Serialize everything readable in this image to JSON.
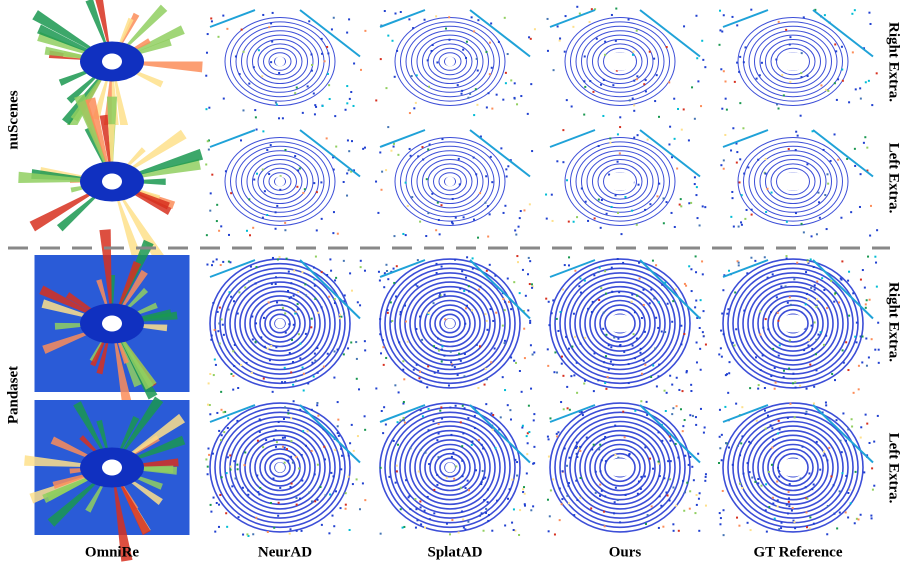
{
  "datasets": [
    {
      "label": "nuScenes"
    },
    {
      "label": "Pandaset"
    }
  ],
  "views": [
    "Right Extra.",
    "Left Extra."
  ],
  "methods": [
    "OmniRe",
    "NeurAD",
    "SplatAD",
    "Ours",
    "GT Reference"
  ]
}
